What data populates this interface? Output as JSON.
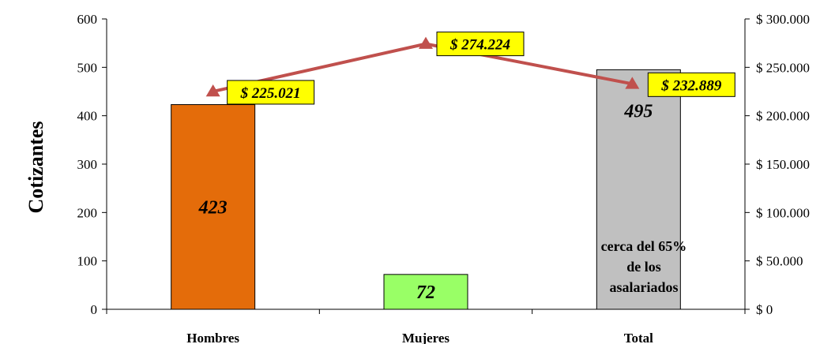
{
  "chart_data": {
    "type": "bar",
    "categories": [
      "Hombres",
      "Mujeres",
      "Total"
    ],
    "ylabel": "Cotizantes",
    "ylim": [
      0,
      600
    ],
    "yticks": [
      "0",
      "100",
      "200",
      "300",
      "400",
      "500",
      "600"
    ],
    "y2lim": [
      0,
      300000
    ],
    "y2ticks": [
      "$ 0",
      "$ 50.000",
      "$ 100.000",
      "$ 150.000",
      "$ 200.000",
      "$ 250.000",
      "$ 300.000"
    ],
    "series": [
      {
        "kind": "bar",
        "axis": "left",
        "values": [
          423,
          72,
          495
        ],
        "labels": [
          "423",
          "72",
          "495"
        ],
        "colors": [
          "#e46c0a",
          "#99ff66",
          "#c0c0c0"
        ]
      },
      {
        "kind": "line",
        "axis": "right",
        "values": [
          225021,
          274224,
          232889
        ],
        "labels": [
          "$ 225.021",
          "$ 274.224",
          "$ 232.889"
        ],
        "color": "#c0504d"
      }
    ],
    "annotation": [
      "cerca del 65%",
      "de los",
      "asalariados"
    ],
    "grid": false,
    "legend": "none",
    "callout_bg": "#ffff00"
  }
}
